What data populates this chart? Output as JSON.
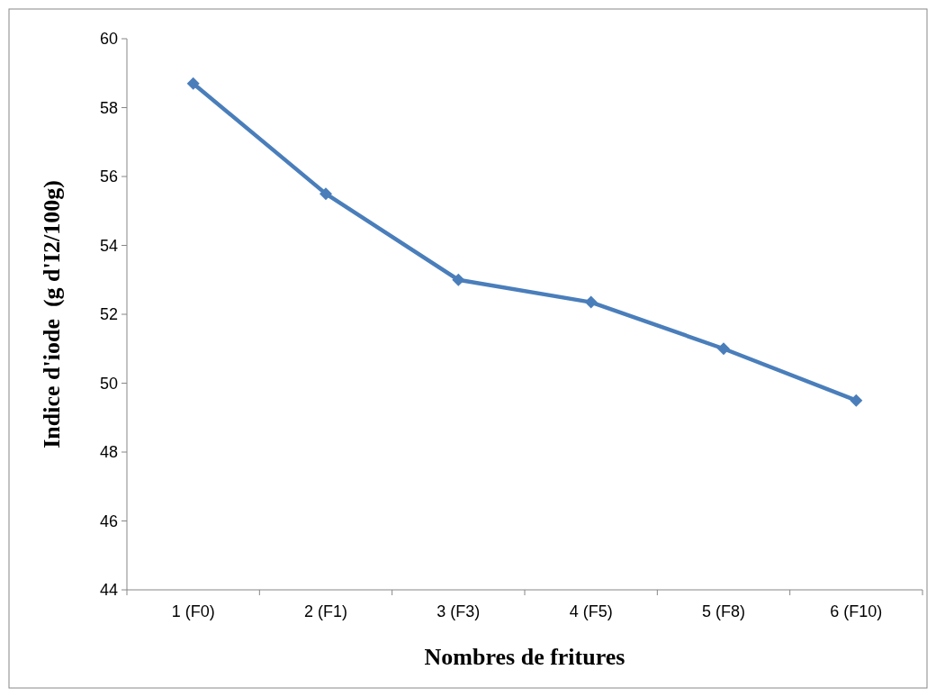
{
  "chart_data": {
    "type": "line",
    "xlabel": "Nombres de fritures",
    "ylabel": "Indice d'iode  (g d'I2/100g)",
    "categories": [
      "1 (F0)",
      "2 (F1)",
      "3 (F3)",
      "4 (F5)",
      "5 (F8)",
      "6 (F10)"
    ],
    "series": [
      {
        "color": "#4a7ebb",
        "values": [
          58.7,
          55.5,
          53.0,
          52.35,
          51.0,
          49.5
        ]
      }
    ],
    "ylim": [
      44,
      60
    ],
    "yticks": [
      44,
      46,
      48,
      50,
      52,
      54,
      56,
      58,
      60
    ],
    "marker": "diamond",
    "line_style": "solid"
  }
}
